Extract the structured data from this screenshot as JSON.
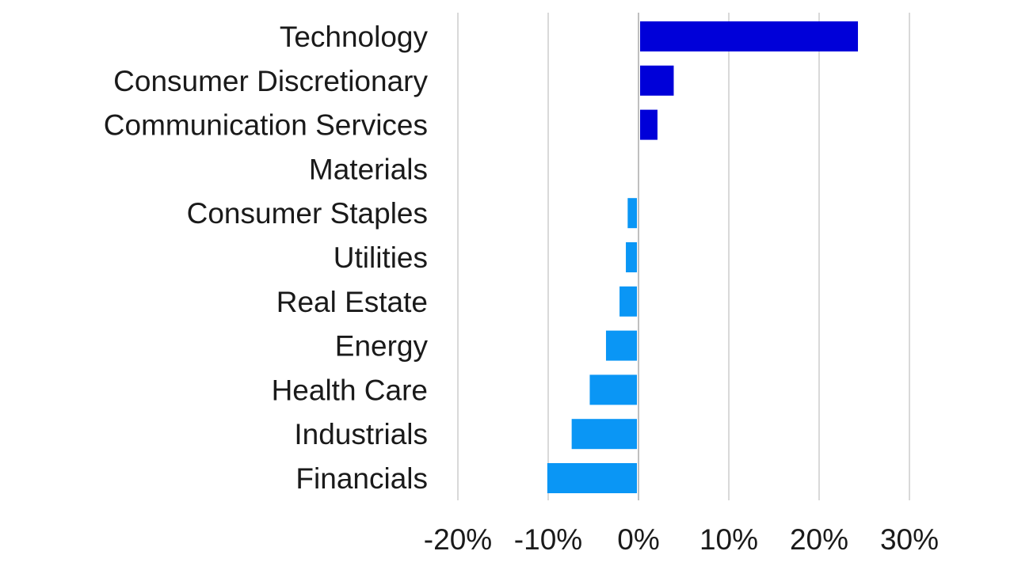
{
  "chart_data": {
    "type": "bar",
    "orientation": "horizontal",
    "categories": [
      "Technology",
      "Consumer Discretionary",
      "Communication Services",
      "Materials",
      "Consumer Staples",
      "Utilities",
      "Real Estate",
      "Energy",
      "Health Care",
      "Industrials",
      "Financials"
    ],
    "values": [
      24.3,
      3.9,
      2.1,
      0.0,
      -1.2,
      -1.4,
      -2.1,
      -3.6,
      -5.4,
      -7.4,
      -10.1
    ],
    "value_unit": "%",
    "xlim": [
      -20,
      30
    ],
    "x_ticks": [
      -20,
      -10,
      0,
      10,
      20,
      30
    ],
    "x_tick_labels": [
      "-20%",
      "-10%",
      "0%",
      "10%",
      "20%",
      "30%"
    ],
    "grid": "vertical",
    "legend": "none",
    "colors": {
      "positive": "#0000d9",
      "negative": "#0a96f5"
    }
  }
}
